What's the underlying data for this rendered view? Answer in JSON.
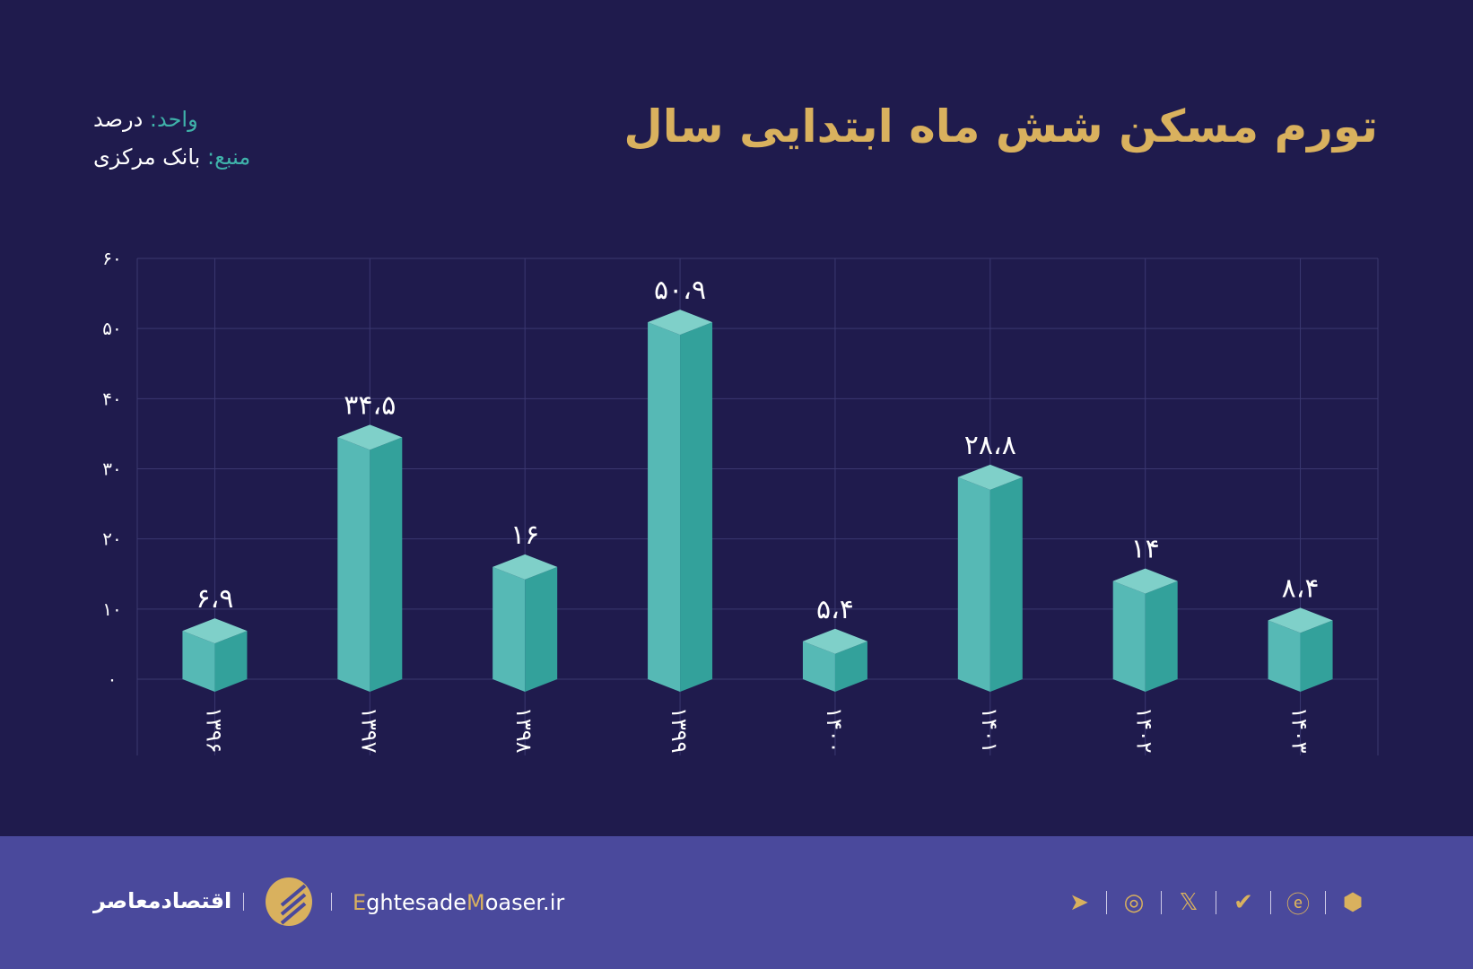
{
  "header": {
    "title": "تورم مسکن شش ماه ابتدایی سال",
    "unit_label": "واحد:",
    "unit_value": "درصد",
    "source_label": "منبع:",
    "source_value": "بانک مرکزی"
  },
  "colors": {
    "background": "#1f1b4d",
    "title": "#d9b15e",
    "accent": "#3fb2aa",
    "footer": "#4a499c"
  },
  "chart_data": {
    "type": "bar",
    "categories": [
      "۱۳۹۶",
      "۱۳۹۷",
      "۱۳۹۸",
      "۱۳۹۹",
      "۱۴۰۰",
      "۱۴۰۱",
      "۱۴۰۲",
      "۱۴۰۳"
    ],
    "values": [
      6.9,
      34.5,
      16,
      50.9,
      5.4,
      28.8,
      14,
      8.4
    ],
    "value_labels": [
      "۶،۹",
      "۳۴،۵",
      "۱۶",
      "۵۰،۹",
      "۵،۴",
      "۲۸،۸",
      "۱۴",
      "۸،۴"
    ],
    "yticks": [
      0,
      10,
      20,
      30,
      40,
      50,
      60
    ],
    "ytick_labels": [
      "۰",
      "۱۰",
      "۲۰",
      "۳۰",
      "۴۰",
      "۵۰",
      "۶۰"
    ],
    "ylim": [
      0,
      60
    ],
    "grid": true,
    "style": "3d-prism"
  },
  "footer": {
    "brand": "اقتصادمعاصر",
    "site_prefix_E": "E",
    "site_mid": "ghtesade",
    "site_M": "M",
    "site_rest": "oaser.ir",
    "icons": [
      "eitaa-icon",
      "rubika-icon",
      "bale-icon",
      "x-icon",
      "instagram-icon",
      "telegram-icon"
    ]
  }
}
